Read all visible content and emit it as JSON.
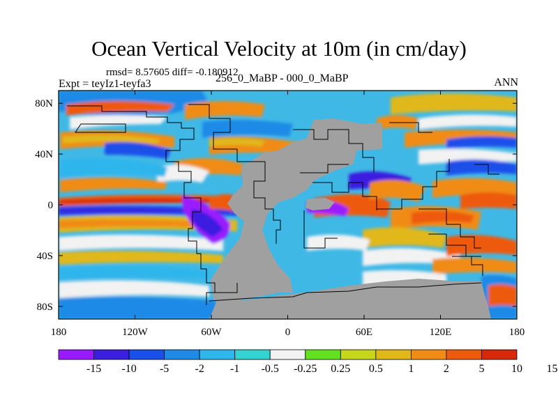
{
  "title": "Ocean Vertical Velocity at 10m (in cm/day)",
  "stats_line": "rmsd= 8.57605 diff= -0.180912",
  "expt_line": "Expt = teyIz1-teyfa3",
  "case_line": "256_0_MaBP - 000_0_MaBP",
  "season": "ANN",
  "map": {
    "lon_range": [
      -180,
      180
    ],
    "lat_range": [
      -90,
      90
    ],
    "x_ticks": [
      {
        "lon": -180,
        "label": "180"
      },
      {
        "lon": -120,
        "label": "120W"
      },
      {
        "lon": -60,
        "label": "60W"
      },
      {
        "lon": 0,
        "label": "0"
      },
      {
        "lon": 60,
        "label": "60E"
      },
      {
        "lon": 120,
        "label": "120E"
      },
      {
        "lon": 180,
        "label": "180"
      }
    ],
    "y_ticks": [
      {
        "lat": 80,
        "label": "80N"
      },
      {
        "lat": 40,
        "label": "40N"
      },
      {
        "lat": 0,
        "label": "0"
      },
      {
        "lat": -40,
        "label": "40S"
      },
      {
        "lat": -80,
        "label": "80S"
      }
    ],
    "land_color": "#a0a0a0",
    "ocean_background": "#40b8e6"
  },
  "colorbar": {
    "colors": [
      "#9a1aff",
      "#3a1fe0",
      "#1a50ea",
      "#1f8ae6",
      "#2fb6ec",
      "#34d2d0",
      "#f2f2f2",
      "#63e01f",
      "#c6d61a",
      "#e0b81a",
      "#f08c14",
      "#ee5a0c",
      "#d8280a"
    ],
    "labels": [
      "-15",
      "-10",
      "-5",
      "-2",
      "-1",
      "-0.5",
      "-0.25",
      "0.25",
      "0.5",
      "1",
      "2",
      "5",
      "10",
      "15"
    ]
  }
}
